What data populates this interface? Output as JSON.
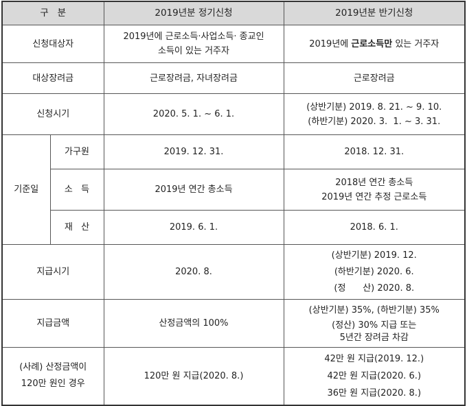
{
  "header": {
    "col0": "구   분",
    "col1": "2019년분 정기신청",
    "col2": "2019년분 반기신청"
  },
  "rows": {
    "target": {
      "label": "신청대상자",
      "regular": [
        "2019년에 근로소득·사업소득· 종교인",
        "소득이 있는 거주자"
      ],
      "semi_prefix": "2019년에 ",
      "semi_bold": "근로소득만",
      "semi_suffix": " 있는 거주자"
    },
    "incentive": {
      "label": "대상장려금",
      "regular": "근로장려금, 자녀장려금",
      "semi": "근로장려금"
    },
    "period": {
      "label": "신청시기",
      "regular": "2020. 5. 1. ~ 6. 1.",
      "semi": [
        "(상반기분) 2019. 8. 21. ~ 9. 10.",
        "(하반기분) 2020. 3.  1. ~ 3. 31."
      ]
    },
    "base_date": {
      "label": "기준일",
      "household": {
        "label": "가구원",
        "regular": "2019. 12. 31.",
        "semi": "2018. 12. 31."
      },
      "income": {
        "label": "소   득",
        "regular": "2019년 연간 총소득",
        "semi": [
          "2018년 연간 총소득",
          "2019년 연간 추정 근로소득"
        ]
      },
      "property": {
        "label": "재   산",
        "regular": "2019. 6. 1.",
        "semi": "2018. 6. 1."
      }
    },
    "pay_time": {
      "label": "지급시기",
      "regular": "2020. 8.",
      "semi": [
        "(상반기분) 2019. 12.",
        "(하반기분) 2020. 6.",
        "(정      산) 2020. 8."
      ]
    },
    "pay_amount": {
      "label": "지급금액",
      "regular": "산정금액의 100%",
      "semi": [
        "(상반기분) 35%, (하반기분) 35%",
        "(정산) 30% 지급 또는",
        "5년간 장려금 차감"
      ]
    },
    "example": {
      "label": [
        "(사례) 산정금액이",
        "120만 원인 경우"
      ],
      "regular": "120만 원 지급(2020. 8.)",
      "semi": [
        "42만 원 지급(2019. 12.)",
        "42만 원 지급(2020. 6.)",
        "36만 원 지급(2020. 8.)"
      ]
    }
  }
}
